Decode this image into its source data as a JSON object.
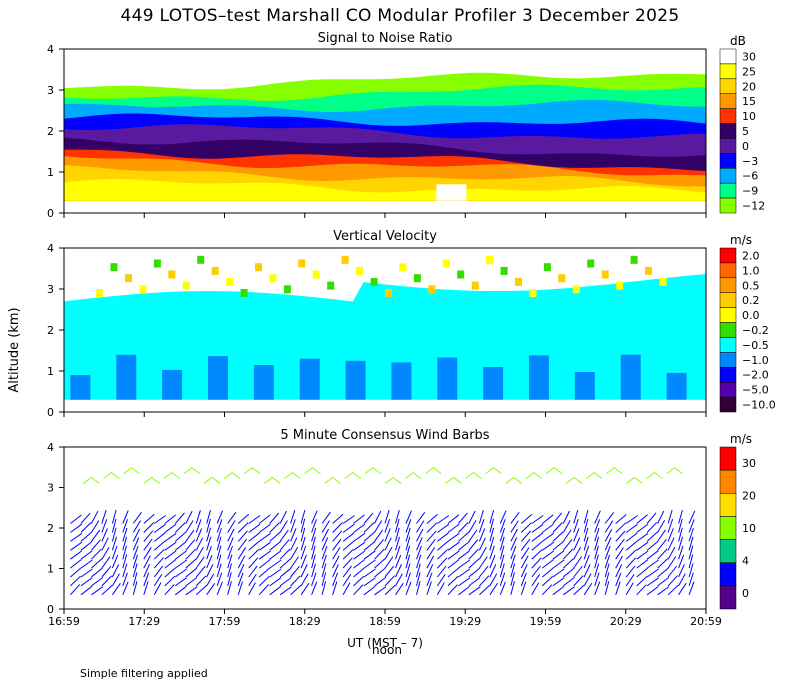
{
  "page": {
    "title": "449 LOTOS–test Marshall CO Modular Profiler  3 December 2025",
    "y_axis_title": "Altitude (km)",
    "x_axis_title": "UT  (MST – 7)",
    "x_axis_sub": "noon",
    "footer": "Simple filtering applied"
  },
  "chart_data": [
    {
      "type": "heatmap",
      "title": "Signal to Noise Ratio",
      "xlabel": "UT  (MST – 7)",
      "ylabel": "Altitude (km)",
      "ylim": [
        0,
        4
      ],
      "yticks": [
        "0",
        "1",
        "2",
        "3",
        "4"
      ],
      "colorbar_unit": "dB",
      "colorbar_labels": [
        "30",
        "25",
        "20",
        "15",
        "10",
        "5",
        "0",
        "−3",
        "−6",
        "−9",
        "−12"
      ],
      "colorbar_colors": [
        "#ffffff",
        "#ffff00",
        "#ffd400",
        "#ff9900",
        "#ff3300",
        "#330066",
        "#5a1aa0",
        "#0000ff",
        "#00aaff",
        "#00ff88",
        "#88ff00"
      ]
    },
    {
      "type": "heatmap",
      "title": "Vertical Velocity",
      "xlabel": "UT  (MST – 7)",
      "ylabel": "Altitude (km)",
      "ylim": [
        0,
        4
      ],
      "yticks": [
        "0",
        "1",
        "2",
        "3",
        "4"
      ],
      "colorbar_unit": "m/s",
      "colorbar_labels": [
        "2.0",
        "1.0",
        "0.5",
        "0.2",
        "0.0",
        "−0.2",
        "−0.5",
        "−1.0",
        "−2.0",
        "−5.0",
        "−10.0"
      ],
      "colorbar_colors": [
        "#ff0000",
        "#ff6600",
        "#ff9900",
        "#ffcc00",
        "#ffff00",
        "#33dd00",
        "#00ffff",
        "#0088ff",
        "#0000ff",
        "#5500aa",
        "#330033"
      ]
    },
    {
      "type": "scatter",
      "title": "5 Minute Consensus Wind Barbs",
      "xlabel": "UT  (MST – 7)",
      "ylabel": "Altitude (km)",
      "ylim": [
        0,
        4
      ],
      "yticks": [
        "0",
        "1",
        "2",
        "3",
        "4"
      ],
      "xticks": [
        "16:59",
        "17:29",
        "17:59",
        "18:29",
        "18:59",
        "19:29",
        "19:59",
        "20:29",
        "20:59"
      ],
      "colorbar_unit": "m/s",
      "colorbar_labels": [
        "30",
        "20",
        "10",
        "4",
        "0"
      ],
      "colorbar_colors": [
        "#ff0000",
        "#ff8800",
        "#ffdd00",
        "#88ff00",
        "#00cc88",
        "#0000ff",
        "#550088"
      ]
    }
  ]
}
